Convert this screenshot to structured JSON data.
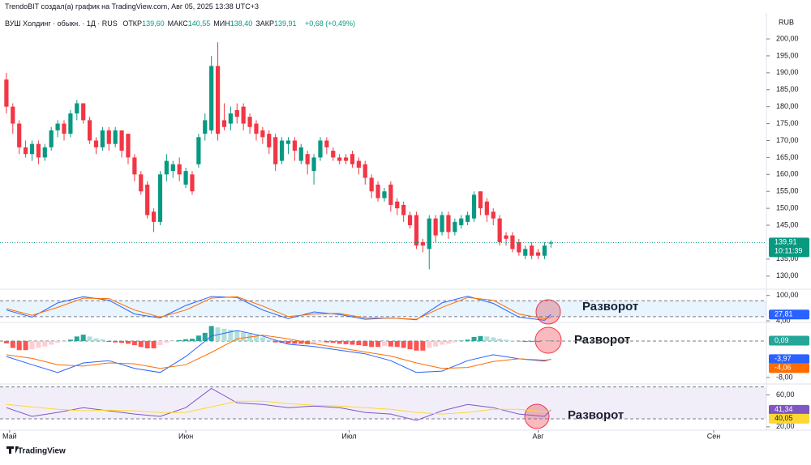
{
  "chart_data": {
    "type": "candlestick",
    "attribution": "TrendoBIT создал(а) график на TradingView.com, Авг 05, 2025 13:38 UTC+3",
    "title": "ВУШ Холдинг · обыкн. · 1Д · RUS",
    "legend": [
      {
        "name": "ОТКР",
        "label": "139,60"
      },
      {
        "name": "МАКС",
        "label": "140,55"
      },
      {
        "name": "МИН",
        "label": "138,40"
      },
      {
        "name": "ЗАКР",
        "label": "139,91"
      }
    ],
    "change_label": "+0,68 (+0,49%)",
    "currency": "RUB",
    "brand": "TradingView",
    "up_color": "#089981",
    "down_color": "#f23645",
    "candles": [
      [
        188,
        190,
        178,
        180
      ],
      [
        180,
        181,
        172,
        175
      ],
      [
        175,
        176,
        166,
        168
      ],
      [
        168,
        170,
        165,
        166
      ],
      [
        166,
        170,
        164,
        169
      ],
      [
        169,
        170,
        163,
        165
      ],
      [
        165,
        169,
        164,
        168
      ],
      [
        168,
        174,
        167,
        173
      ],
      [
        173,
        176,
        171,
        175
      ],
      [
        175,
        176,
        170,
        172
      ],
      [
        172,
        179,
        171,
        178
      ],
      [
        178,
        182,
        176,
        181
      ],
      [
        181,
        181,
        175,
        176
      ],
      [
        176,
        177,
        169,
        170
      ],
      [
        170,
        171,
        166,
        168
      ],
      [
        168,
        174,
        167,
        173
      ],
      [
        173,
        174,
        167,
        169
      ],
      [
        169,
        174,
        168,
        173
      ],
      [
        173,
        173,
        165,
        167
      ],
      [
        172,
        172,
        163,
        165
      ],
      [
        165,
        166,
        158,
        160
      ],
      [
        160,
        161,
        154,
        155
      ],
      [
        157,
        158,
        147,
        148
      ],
      [
        149,
        150,
        143,
        146
      ],
      [
        146,
        161,
        145,
        160
      ],
      [
        160,
        166,
        158,
        164
      ],
      [
        161,
        164,
        159,
        163
      ],
      [
        163,
        165,
        158,
        160
      ],
      [
        157,
        162,
        156,
        161
      ],
      [
        160,
        161,
        154,
        155
      ],
      [
        163,
        172,
        162,
        171
      ],
      [
        172,
        178,
        170,
        176
      ],
      [
        173,
        195,
        172,
        192
      ],
      [
        192,
        199,
        170,
        172
      ],
      [
        176,
        181,
        173,
        174
      ],
      [
        175,
        180,
        173,
        178
      ],
      [
        179,
        181,
        175,
        177
      ],
      [
        180,
        181,
        173,
        175
      ],
      [
        177,
        178,
        172,
        174
      ],
      [
        175,
        176,
        170,
        172
      ],
      [
        173,
        174,
        169,
        171
      ],
      [
        172,
        173,
        166,
        168
      ],
      [
        171,
        172,
        161,
        163
      ],
      [
        164,
        171,
        163,
        170
      ],
      [
        169,
        171,
        166,
        170
      ],
      [
        170,
        171,
        164,
        167
      ],
      [
        164,
        169,
        163,
        168
      ],
      [
        166,
        167,
        160,
        163
      ],
      [
        161,
        166,
        157,
        165
      ],
      [
        165,
        171,
        164,
        170
      ],
      [
        170,
        171,
        166,
        168
      ],
      [
        167,
        168,
        164,
        165
      ],
      [
        165,
        166,
        163,
        164
      ],
      [
        165,
        166,
        163,
        164
      ],
      [
        166,
        167,
        162,
        163
      ],
      [
        164,
        165,
        160,
        162
      ],
      [
        163,
        164,
        157,
        159
      ],
      [
        159,
        160,
        153,
        155
      ],
      [
        157,
        158,
        152,
        153
      ],
      [
        153,
        156,
        152,
        155
      ],
      [
        157,
        158,
        149,
        151
      ],
      [
        152,
        153,
        148,
        150
      ],
      [
        151,
        152,
        146,
        148
      ],
      [
        148,
        149,
        144,
        145
      ],
      [
        148,
        149,
        138,
        139
      ],
      [
        140,
        141,
        137,
        139
      ],
      [
        138,
        148,
        132,
        147
      ],
      [
        147,
        148,
        140,
        142
      ],
      [
        143,
        149,
        142,
        148
      ],
      [
        148,
        149,
        141,
        143
      ],
      [
        143,
        147,
        142,
        146
      ],
      [
        145,
        148,
        144,
        147
      ],
      [
        146,
        149,
        145,
        148
      ],
      [
        147,
        155,
        146,
        154
      ],
      [
        155,
        155,
        148,
        150
      ],
      [
        152,
        153,
        146,
        148
      ],
      [
        149,
        150,
        145,
        147
      ],
      [
        147,
        148,
        139,
        140
      ],
      [
        142,
        143,
        139,
        141
      ],
      [
        142,
        143,
        137,
        138
      ],
      [
        140,
        141,
        136,
        137
      ],
      [
        136,
        139,
        135,
        138
      ],
      [
        139,
        140,
        135,
        136
      ],
      [
        137,
        138,
        135,
        136
      ],
      [
        136,
        140,
        135,
        139
      ],
      [
        139.6,
        140.55,
        138.4,
        139.91
      ]
    ],
    "xlim": [
      -1,
      118
    ],
    "xticks": [
      {
        "value": 0.5,
        "label": "Май"
      },
      {
        "value": 28,
        "label": "Июн"
      },
      {
        "value": 53.5,
        "label": "Июл"
      },
      {
        "value": 83,
        "label": "Авг"
      },
      {
        "value": 110.4,
        "label": "Сен"
      }
    ],
    "ylim": [
      126.6,
      206.7
    ],
    "yticks": [
      {
        "value": 130,
        "label": "130,00"
      },
      {
        "value": 135,
        "label": "135,00"
      },
      {
        "value": 145,
        "label": "145,00"
      },
      {
        "value": 150,
        "label": "150,00"
      },
      {
        "value": 155,
        "label": "155,00"
      },
      {
        "value": 160,
        "label": "160,00"
      },
      {
        "value": 165,
        "label": "165,00"
      },
      {
        "value": 170,
        "label": "170,00"
      },
      {
        "value": 175,
        "label": "175,00"
      },
      {
        "value": 180,
        "label": "180,00"
      },
      {
        "value": 185,
        "label": "185,00"
      },
      {
        "value": 190,
        "label": "190,00"
      },
      {
        "value": 195,
        "label": "195,00"
      },
      {
        "value": 200,
        "label": "200,00"
      }
    ],
    "last_price": {
      "value": 139.91,
      "label": "139,91",
      "color": "#089981"
    },
    "countdown": "10:11:39",
    "panes": [
      {
        "type": "stochastic",
        "ylim": [
          1.1,
          117.5
        ],
        "yticks": [
          {
            "value": 100,
            "label": "100,00"
          },
          {
            "value": 4,
            "label": "4,00"
          }
        ],
        "band": [
          20,
          80
        ],
        "band_color": "#2196f3",
        "x": [
          0,
          4,
          8,
          12,
          16,
          20,
          24,
          28,
          32,
          36,
          40,
          44,
          48,
          52,
          56,
          60,
          64,
          68,
          72,
          76,
          80,
          84,
          85
        ],
        "series": [
          {
            "color": "#2962ff",
            "values": [
              45,
              18,
              72,
              95,
              82,
              30,
              15,
              62,
              96,
              92,
              45,
              12,
              38,
              28,
              10,
              15,
              8,
              72,
              97,
              70,
              18,
              6,
              27.81
            ],
            "last_label": "27,81"
          },
          {
            "color": "#ff6d00",
            "values": [
              50,
              25,
              55,
              90,
              88,
              45,
              18,
              45,
              90,
              95,
              60,
              20,
              30,
              32,
              15,
              14,
              10,
              55,
              92,
              82,
              30,
              12,
              17
            ]
          }
        ],
        "annotation": "Разворот"
      },
      {
        "type": "macd",
        "ylim": [
          -9.07,
          3.73
        ],
        "yticks": [
          {
            "value": -8,
            "label": "-8,00"
          }
        ],
        "histogram": {
          "values": [
            -0.5,
            -1.5,
            -2,
            -2,
            -1.8,
            -1.5,
            -1.2,
            -0.8,
            -0.4,
            -0.2,
            0.3,
            1.0,
            1.4,
            1.0,
            0.6,
            0.4,
            -0.2,
            -0.3,
            -0.4,
            -0.6,
            -0.9,
            -1.3,
            -1.6,
            -1.6,
            -0.9,
            -0.4,
            -0.1,
            0.2,
            0.4,
            0.5,
            1.2,
            1.8,
            3.3,
            3.0,
            2.7,
            2.5,
            2.2,
            1.9,
            1.6,
            1.2,
            0.8,
            0.3,
            -0.3,
            -0.4,
            -0.5,
            -0.6,
            -0.6,
            -0.7,
            -0.6,
            -0.3,
            -0.3,
            -0.4,
            -0.6,
            -0.7,
            -0.8,
            -0.9,
            -1.1,
            -1.3,
            -1.3,
            -1.1,
            -1.2,
            -1.3,
            -1.5,
            -1.8,
            -2.1,
            -2.1,
            -1.5,
            -1.2,
            -0.8,
            -0.6,
            -0.3,
            0.1,
            0.3,
            0.9,
            1.1,
            1.0,
            0.8,
            0.5,
            0.3,
            0.1,
            -0.1,
            -0.2,
            -0.2,
            -0.2,
            -0.1,
            0.09
          ],
          "last_label": "0,09",
          "colors": {
            "up_grow": "#26a69a",
            "up_fall": "#b2dfdb",
            "down_grow": "#ff5252",
            "down_fall": "#ffcdd2"
          }
        },
        "x": [
          0,
          4,
          8,
          12,
          16,
          20,
          24,
          28,
          32,
          36,
          40,
          44,
          48,
          52,
          56,
          60,
          64,
          68,
          72,
          76,
          80,
          84,
          85
        ],
        "series": [
          {
            "color": "#2962ff",
            "values": [
              -3.4,
              -5.2,
              -6.9,
              -4.8,
              -4.3,
              -6,
              -6.9,
              -3.4,
              1.1,
              2.3,
              1.1,
              -0.7,
              -1.2,
              -2,
              -2.8,
              -4.3,
              -6.9,
              -6.6,
              -4.3,
              -3,
              -3.9,
              -4.4,
              -3.97
            ],
            "last_label": "-3,97"
          },
          {
            "color": "#ff6d00",
            "values": [
              -3,
              -3.8,
              -5.2,
              -5.5,
              -4.8,
              -5,
              -6,
              -5.2,
              -2.5,
              0.5,
              1.3,
              0.5,
              -0.6,
              -1.5,
              -2.4,
              -3.3,
              -4.8,
              -6,
              -5.8,
              -4.5,
              -3.9,
              -4.2,
              -4.06
            ],
            "last_label": "-4,06"
          }
        ],
        "annotation": "Разворот"
      },
      {
        "type": "rsi",
        "ylim": [
          16.8,
          71.6
        ],
        "yticks": [
          {
            "value": 60,
            "label": "60,00"
          },
          {
            "value": 20,
            "label": "20,00"
          }
        ],
        "band": [
          30,
          70
        ],
        "band_color": "#7e57c2",
        "x": [
          0,
          4,
          8,
          12,
          16,
          20,
          24,
          28,
          32,
          36,
          40,
          44,
          48,
          52,
          56,
          60,
          64,
          68,
          72,
          76,
          80,
          84,
          85
        ],
        "series": [
          {
            "color": "#7e57c2",
            "values": [
              44,
              33,
              38,
              44,
              40,
              36,
              33,
              44,
              68,
              50,
              48,
              44,
              46,
              44,
              38,
              36,
              28,
              40,
              48,
              44,
              36,
              33,
              41.34
            ],
            "last_label": "41,34"
          },
          {
            "color": "#fdd835",
            "values": [
              48,
              45,
              42,
              40,
              41,
              40,
              38,
              38,
              45,
              52,
              52,
              49,
              47,
              46,
              44,
              42,
              38,
              36,
              38,
              42,
              42,
              39,
              40.05
            ],
            "last_label": "40,05"
          }
        ],
        "annotation": "Разворот"
      }
    ]
  }
}
